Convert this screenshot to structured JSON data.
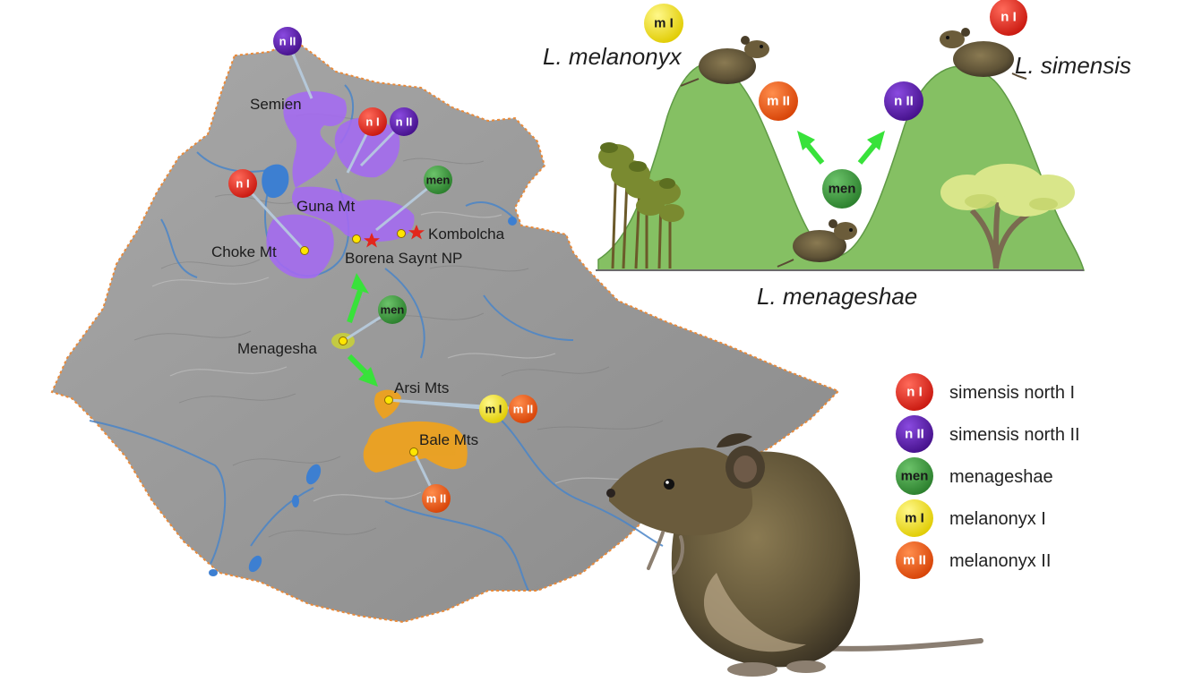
{
  "colors": {
    "simensis_north_I": "#e3261c",
    "simensis_north_II": "#5b17b0",
    "menageshae": "#3b9a3b",
    "melanonyx_I": "#f6e61a",
    "melanonyx_II": "#f05a13",
    "arrow": "#38e23a",
    "hill": "#85c063",
    "map_land": "#9a9a9a",
    "north_range": "#a46af2",
    "south_range": "#f0a21c"
  },
  "map": {
    "places": {
      "semien": "Semien",
      "guna": "Guna Mt",
      "choke": "Choke Mt",
      "borena": "Borena Saynt NP",
      "kombolcha": "Kombolcha",
      "menagesha": "Menagesha",
      "arsi": "Arsi Mts",
      "bale": "Bale Mts"
    },
    "badges": {
      "semien_nII": "n II",
      "guna_nI": "n I",
      "guna_nII": "n II",
      "choke_nI": "n I",
      "borena_men": "men",
      "menagesha_men": "men",
      "arsi_mI": "m I",
      "arsi_mII": "m II",
      "bale_mII": "m II"
    }
  },
  "diagram": {
    "species_melanonyx": "L. melanonyx",
    "species_simensis": "L. simensis",
    "species_menageshae": "L. menageshae",
    "badge_top_left": "m I",
    "badge_top_right": "n I",
    "badge_mid_left": "m II",
    "badge_mid_right": "n II",
    "badge_valley": "men"
  },
  "legend": {
    "items": [
      {
        "code": "n I",
        "label": "simensis north I",
        "color": "#e3261c",
        "text_color": "#ffffff"
      },
      {
        "code": "n II",
        "label": "simensis north II",
        "color": "#5b17b0",
        "text_color": "#ffffff"
      },
      {
        "code": "men",
        "label": "menageshae",
        "color": "#3b9a3b",
        "text_color": "#1a1a1a"
      },
      {
        "code": "m I",
        "label": "melanonyx I",
        "color": "#f6e61a",
        "text_color": "#1a1a1a"
      },
      {
        "code": "m II",
        "label": "melanonyx II",
        "color": "#f05a13",
        "text_color": "#ffffff"
      }
    ]
  }
}
